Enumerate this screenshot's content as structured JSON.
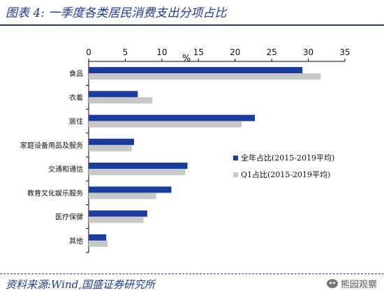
{
  "header": {
    "title": "图表 4:  一季度各类居民消费支出分项占比"
  },
  "footer": {
    "source": "资料来源:Wind,国盛证券研究所",
    "watermark": "熊园观察"
  },
  "colors": {
    "title": "#1f3b8f",
    "series_full_year": "#1a3c9c",
    "series_q1": "#c8c8c8",
    "axis": "#000000"
  },
  "chart_data": {
    "type": "bar",
    "orientation": "horizontal",
    "unit_label": "%",
    "categories": [
      "食品",
      "衣着",
      "居住",
      "家庭设备用品及服务",
      "交通和通信",
      "教育文化娱乐服务",
      "医疗保健",
      "其他"
    ],
    "series": [
      {
        "name": "全年占比(2015-2019平均)",
        "values": [
          29.2,
          6.7,
          22.7,
          6.2,
          13.5,
          11.3,
          8.0,
          2.4
        ]
      },
      {
        "name": "Q1占比(2015-2019平均)",
        "values": [
          31.7,
          8.7,
          20.9,
          5.9,
          13.2,
          9.2,
          7.5,
          2.6
        ]
      }
    ],
    "xlim": [
      0,
      35
    ],
    "xticks": [
      0,
      5,
      10,
      15,
      20,
      25,
      30,
      35
    ],
    "xaxis_position": "top",
    "legend_position": "right",
    "grid": false
  }
}
